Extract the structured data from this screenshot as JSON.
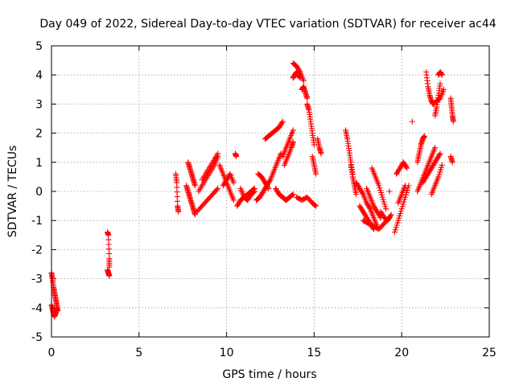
{
  "chart_data": {
    "type": "scatter",
    "title": "Day 049 of 2022, Sidereal Day-to-day VTEC variation (SDTVAR) for receiver ac44",
    "xlabel": "GPS time / hours",
    "ylabel": "SDTVAR / TECUs",
    "xlim": [
      0,
      25
    ],
    "ylim": [
      -5,
      5
    ],
    "xticks": [
      "0",
      "5",
      "10",
      "15",
      "20",
      "25"
    ],
    "yticks": [
      "-5",
      "-4",
      "-3",
      "-2",
      "-1",
      "0",
      "1",
      "2",
      "3",
      "4",
      "5"
    ],
    "grid": true,
    "marker": "plus",
    "color": "#ff0000",
    "segments": [
      {
        "x": [
          0.0,
          0.06,
          0.12,
          0.18,
          0.24,
          0.3,
          0.36
        ],
        "y": [
          -2.8,
          -3.0,
          -3.3,
          -3.5,
          -3.7,
          -3.9,
          -4.1
        ]
      },
      {
        "x": [
          0.0,
          0.08,
          0.16,
          0.24,
          0.32
        ],
        "y": [
          -3.9,
          -4.1,
          -4.3,
          -4.2,
          -4.0
        ]
      },
      {
        "x": [
          3.2,
          3.25,
          3.3,
          3.3
        ],
        "y": [
          -1.4,
          -1.5,
          -2.3,
          -2.6
        ]
      },
      {
        "x": [
          3.2,
          3.25,
          3.3
        ],
        "y": [
          -2.7,
          -2.8,
          -2.9
        ]
      },
      {
        "x": [
          7.1,
          7.15,
          7.2,
          7.25
        ],
        "y": [
          0.6,
          0.3,
          -0.5,
          -0.7
        ]
      },
      {
        "x": [
          7.7,
          7.8,
          7.9,
          8.0,
          8.1,
          8.2
        ],
        "y": [
          0.2,
          0.0,
          -0.2,
          -0.4,
          -0.6,
          -0.8
        ]
      },
      {
        "x": [
          7.8,
          7.9,
          8.0,
          8.1,
          8.2
        ],
        "y": [
          1.0,
          0.8,
          0.6,
          0.4,
          0.2
        ]
      },
      {
        "x": [
          8.3,
          8.6,
          8.9,
          9.2,
          9.5
        ],
        "y": [
          -0.7,
          -0.5,
          -0.3,
          -0.1,
          0.1
        ]
      },
      {
        "x": [
          8.4,
          8.7,
          9.0,
          9.3,
          9.5
        ],
        "y": [
          0.0,
          0.3,
          0.6,
          0.9,
          1.2
        ]
      },
      {
        "x": [
          8.6,
          8.9,
          9.2,
          9.5
        ],
        "y": [
          0.4,
          0.7,
          1.0,
          1.3
        ]
      },
      {
        "x": [
          9.6,
          9.8,
          10.0,
          10.2,
          10.4
        ],
        "y": [
          0.9,
          0.6,
          0.3,
          0.0,
          -0.3
        ]
      },
      {
        "x": [
          9.8,
          10.0,
          10.2,
          10.4
        ],
        "y": [
          0.2,
          0.4,
          0.6,
          0.3
        ]
      },
      {
        "x": [
          10.5,
          10.55
        ],
        "y": [
          1.3,
          1.2
        ]
      },
      {
        "x": [
          10.6,
          10.8,
          11.0,
          11.2,
          11.4,
          11.6
        ],
        "y": [
          -0.5,
          -0.3,
          -0.2,
          -0.1,
          0.0,
          0.1
        ]
      },
      {
        "x": [
          10.8,
          11.0,
          11.2,
          11.4,
          11.6
        ],
        "y": [
          0.1,
          -0.2,
          -0.3,
          -0.1,
          0.0
        ]
      },
      {
        "x": [
          11.7,
          11.9,
          12.1,
          12.3,
          12.5
        ],
        "y": [
          -0.3,
          -0.2,
          0.0,
          0.2,
          0.4
        ]
      },
      {
        "x": [
          11.8,
          12.0,
          12.2,
          12.4
        ],
        "y": [
          0.6,
          0.5,
          0.3,
          0.1
        ]
      },
      {
        "x": [
          12.2,
          12.4,
          12.6,
          12.8,
          13.0,
          13.2
        ],
        "y": [
          1.8,
          1.9,
          2.0,
          2.1,
          2.2,
          2.4
        ]
      },
      {
        "x": [
          12.5,
          12.7,
          12.9,
          13.1
        ],
        "y": [
          0.4,
          0.7,
          1.0,
          1.3
        ]
      },
      {
        "x": [
          12.8,
          13.0,
          13.2,
          13.4,
          13.6,
          13.8
        ],
        "y": [
          0.1,
          -0.1,
          -0.2,
          -0.3,
          -0.2,
          -0.1
        ]
      },
      {
        "x": [
          13.2,
          13.4,
          13.6,
          13.8
        ],
        "y": [
          1.2,
          1.5,
          1.8,
          2.1
        ]
      },
      {
        "x": [
          13.3,
          13.5,
          13.7,
          13.8
        ],
        "y": [
          0.9,
          1.2,
          1.5,
          1.7
        ]
      },
      {
        "x": [
          13.8,
          14.0,
          14.2,
          14.4
        ],
        "y": [
          4.4,
          4.3,
          4.1,
          3.8
        ]
      },
      {
        "x": [
          13.8,
          13.9,
          14.0,
          14.1,
          14.2
        ],
        "y": [
          3.9,
          4.0,
          4.1,
          4.0,
          3.9
        ]
      },
      {
        "x": [
          14.3,
          14.4,
          14.5,
          14.6
        ],
        "y": [
          3.5,
          3.6,
          3.4,
          3.2
        ]
      },
      {
        "x": [
          14.6,
          14.7,
          14.8,
          14.9,
          15.0
        ],
        "y": [
          3.0,
          2.8,
          2.4,
          2.0,
          1.6
        ]
      },
      {
        "x": [
          14.9,
          15.0,
          15.1
        ],
        "y": [
          1.2,
          0.9,
          0.6
        ]
      },
      {
        "x": [
          14.0,
          14.3,
          14.6,
          14.9,
          15.1
        ],
        "y": [
          -0.2,
          -0.3,
          -0.2,
          -0.4,
          -0.5
        ]
      },
      {
        "x": [
          15.2,
          15.3,
          15.4
        ],
        "y": [
          1.8,
          1.5,
          1.3
        ]
      },
      {
        "x": [
          16.8,
          16.9,
          17.0,
          17.1,
          17.2
        ],
        "y": [
          2.1,
          1.8,
          1.4,
          1.0,
          0.6
        ]
      },
      {
        "x": [
          17.1,
          17.2,
          17.3,
          17.4
        ],
        "y": [
          0.9,
          0.5,
          0.2,
          -0.1
        ]
      },
      {
        "x": [
          17.4,
          17.6,
          17.8,
          18.0,
          18.2,
          18.4,
          18.6
        ],
        "y": [
          0.3,
          0.1,
          -0.1,
          -0.4,
          -0.6,
          -0.9,
          -1.2
        ]
      },
      {
        "x": [
          17.6,
          17.8,
          18.0,
          18.2,
          18.4
        ],
        "y": [
          -0.5,
          -0.7,
          -0.9,
          -1.1,
          -1.3
        ]
      },
      {
        "x": [
          17.8,
          18.1,
          18.4,
          18.7,
          19.0,
          19.3
        ],
        "y": [
          -1.0,
          -1.1,
          -1.2,
          -1.3,
          -1.1,
          -0.9
        ]
      },
      {
        "x": [
          18.0,
          18.2,
          18.4,
          18.6,
          18.8
        ],
        "y": [
          0.1,
          -0.2,
          -0.5,
          -0.7,
          -0.9
        ]
      },
      {
        "x": [
          18.3,
          18.5,
          18.7,
          18.9,
          19.1
        ],
        "y": [
          0.8,
          0.5,
          0.2,
          -0.2,
          -0.6
        ]
      },
      {
        "x": [
          18.8,
          19.0,
          19.2,
          19.4
        ],
        "y": [
          -0.7,
          -0.9,
          -1.0,
          -0.8
        ]
      },
      {
        "x": [
          19.3
        ],
        "y": [
          0.0
        ]
      },
      {
        "x": [
          19.6,
          19.8,
          20.0,
          20.2,
          20.4
        ],
        "y": [
          -1.4,
          -1.0,
          -0.6,
          -0.2,
          0.2
        ]
      },
      {
        "x": [
          19.7,
          19.9,
          20.1,
          20.3
        ],
        "y": [
          0.6,
          0.8,
          1.0,
          0.8
        ]
      },
      {
        "x": [
          19.8,
          20.0,
          20.2
        ],
        "y": [
          -0.4,
          -0.1,
          0.2
        ]
      },
      {
        "x": [
          20.6
        ],
        "y": [
          2.4
        ]
      },
      {
        "x": [
          20.9,
          21.1,
          21.3,
          21.5,
          21.7,
          21.9
        ],
        "y": [
          0.0,
          0.3,
          0.6,
          0.9,
          1.2,
          1.5
        ]
      },
      {
        "x": [
          20.9,
          21.0,
          21.1,
          21.2,
          21.3
        ],
        "y": [
          1.0,
          1.3,
          1.6,
          1.8,
          1.9
        ]
      },
      {
        "x": [
          21.2,
          21.4,
          21.6,
          21.8,
          22.0,
          22.2
        ],
        "y": [
          0.3,
          0.5,
          0.7,
          0.9,
          1.1,
          1.3
        ]
      },
      {
        "x": [
          21.4,
          21.5,
          21.6,
          21.7,
          21.8
        ],
        "y": [
          4.1,
          3.6,
          3.3,
          3.1,
          3.0
        ]
      },
      {
        "x": [
          21.8,
          22.0,
          22.2,
          22.4
        ],
        "y": [
          3.0,
          3.1,
          3.2,
          3.5
        ]
      },
      {
        "x": [
          21.9,
          22.0,
          22.1,
          22.2
        ],
        "y": [
          2.6,
          2.9,
          3.3,
          3.7
        ]
      },
      {
        "x": [
          22.1,
          22.2,
          22.3
        ],
        "y": [
          4.0,
          4.1,
          4.0
        ]
      },
      {
        "x": [
          21.7,
          21.9,
          22.1,
          22.3
        ],
        "y": [
          -0.1,
          0.2,
          0.5,
          0.9
        ]
      },
      {
        "x": [
          22.8,
          22.85,
          22.9,
          22.95
        ],
        "y": [
          3.2,
          2.9,
          2.6,
          2.4
        ]
      },
      {
        "x": [
          22.8,
          22.9
        ],
        "y": [
          1.2,
          1.0
        ]
      }
    ]
  }
}
